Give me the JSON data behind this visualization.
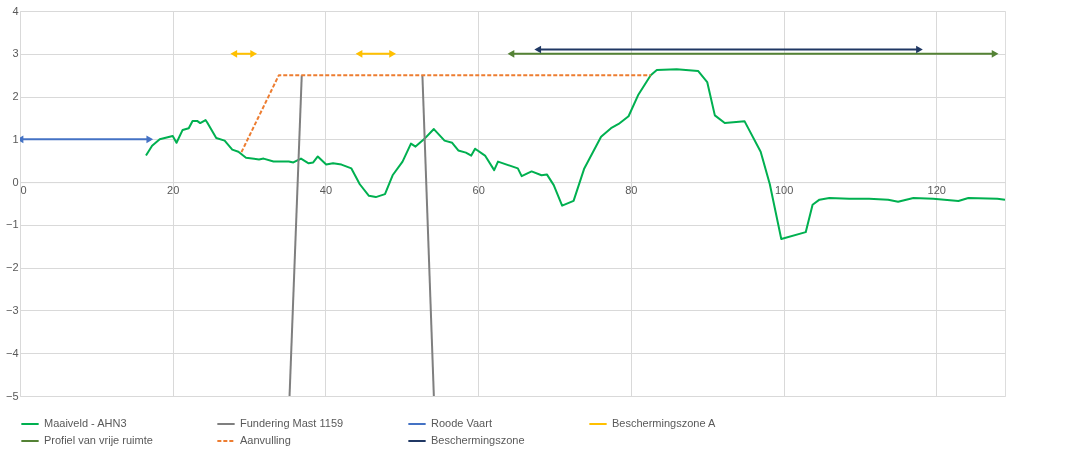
{
  "chart_data": {
    "type": "line",
    "xlim": [
      0,
      129
    ],
    "xticks": [
      0,
      20,
      40,
      60,
      80,
      100,
      120
    ],
    "ylim": [
      -5,
      4
    ],
    "yticks": [
      -5,
      -4,
      -3,
      -2,
      -1,
      0,
      1,
      2,
      3,
      4
    ],
    "grid": true,
    "legend": "bottom",
    "series": [
      {
        "name": "Maaiveld - AHN3",
        "color": "#00b050",
        "line_style": "solid",
        "marker": "none",
        "x": [
          16.5,
          17.3,
          18.3,
          20,
          20.5,
          21.3,
          22.1,
          22.6,
          23.2,
          23.6,
          24.3,
          24.5,
          25.7,
          26.8,
          27.8,
          28.6,
          29.6,
          31.3,
          31.9,
          33.2,
          35.2,
          35.8,
          36.8,
          37.8,
          38.4,
          39,
          40.1,
          41,
          42.1,
          43.4,
          44.5,
          45.7,
          46.6,
          47.8,
          48.8,
          50.1,
          51.2,
          51.8,
          52.9,
          54.2,
          55.6,
          56.6,
          57.4,
          58.4,
          59.1,
          59.6,
          60.9,
          62.1,
          62.6,
          65.2,
          65.7,
          67,
          68.3,
          69,
          69.9,
          71,
          72.5,
          73.9,
          76.1,
          77.4,
          78.4,
          79.7,
          81,
          82.6,
          83.4,
          86,
          88.8,
          90,
          91,
          92.3,
          94.9,
          97,
          98.2,
          99.7,
          102.9,
          103.8,
          104.7,
          106,
          108.6,
          111.2,
          113.7,
          115,
          117,
          119.6,
          122.9,
          124.2,
          128,
          129
        ],
        "values": [
          0.62,
          0.85,
          1.0,
          1.08,
          0.92,
          1.22,
          1.26,
          1.43,
          1.43,
          1.38,
          1.45,
          1.4,
          1.03,
          0.97,
          0.76,
          0.71,
          0.57,
          0.53,
          0.55,
          0.48,
          0.48,
          0.46,
          0.55,
          0.44,
          0.46,
          0.6,
          0.41,
          0.44,
          0.41,
          0.32,
          -0.05,
          -0.32,
          -0.35,
          -0.28,
          0.16,
          0.48,
          0.9,
          0.83,
          1.0,
          1.24,
          0.97,
          0.92,
          0.74,
          0.69,
          0.62,
          0.78,
          0.62,
          0.28,
          0.48,
          0.32,
          0.14,
          0.25,
          0.16,
          0.18,
          -0.07,
          -0.55,
          -0.44,
          0.32,
          1.06,
          1.26,
          1.36,
          1.54,
          2.05,
          2.5,
          2.62,
          2.64,
          2.6,
          2.34,
          1.56,
          1.38,
          1.42,
          0.71,
          -0.05,
          -1.33,
          -1.17,
          -0.53,
          -0.41,
          -0.37,
          -0.39,
          -0.39,
          -0.41,
          -0.46,
          -0.37,
          -0.39,
          -0.44,
          -0.37,
          -0.39,
          -0.41
        ]
      },
      {
        "name": "Fundering Mast 1159",
        "color": "#7f7f7f",
        "line_style": "solid",
        "marker": "none",
        "x": [
          36.9,
          35.3,
          44,
          52.7,
          54.2
        ],
        "values": [
          2.5,
          -5,
          null,
          2.5,
          -5
        ]
      },
      {
        "name": "Roode Vaart",
        "color": "#4472c4",
        "line_style": "solid",
        "marker": "triangle",
        "x": [
          0,
          17
        ],
        "values": [
          1,
          1
        ]
      },
      {
        "name": "Beschermingszone A",
        "color": "#ffc000",
        "line_style": "solid",
        "marker": "triangle",
        "x": [
          28,
          30.6,
          38,
          44.4,
          48.8
        ],
        "values": [
          3,
          3,
          null,
          3,
          3
        ]
      },
      {
        "name": "Profiel van vrije ruimte",
        "color": "#548235",
        "line_style": "solid",
        "marker": "triangle",
        "x": [
          64.3,
          127.7
        ],
        "values": [
          3,
          3
        ]
      },
      {
        "name": "Aanvulling",
        "color": "#ed7d31",
        "line_style": "dashed",
        "marker": "none",
        "x": [
          29,
          33.9,
          82.6
        ],
        "values": [
          0.7,
          2.5,
          2.5
        ]
      },
      {
        "name": "Beschermingszone",
        "color": "#203864",
        "line_style": "solid",
        "marker": "triangle",
        "x": [
          67.8,
          117.8
        ],
        "values": [
          3.1,
          3.1
        ]
      }
    ]
  }
}
